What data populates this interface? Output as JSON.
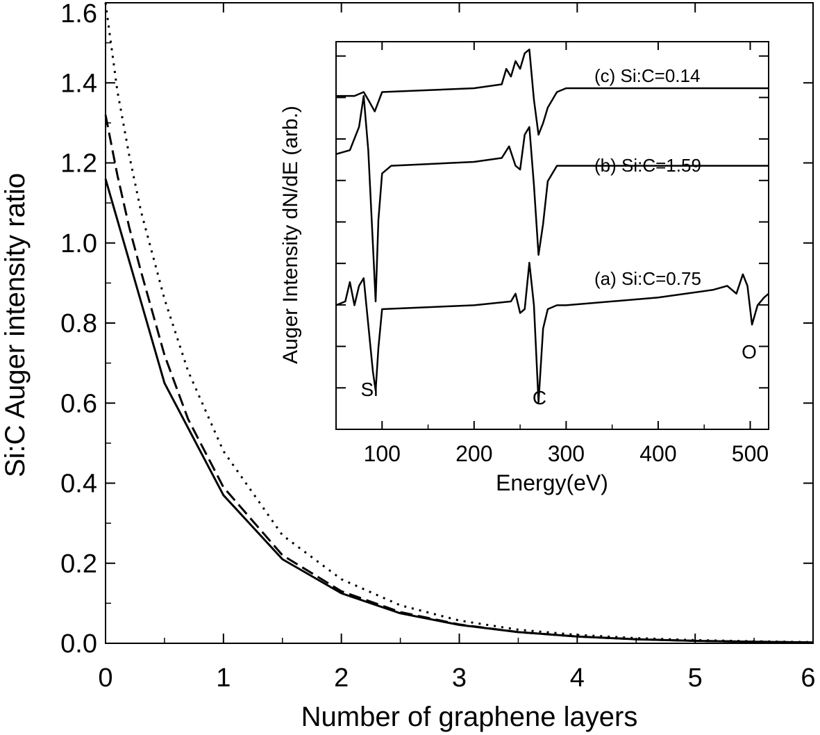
{
  "chart_data": [
    {
      "type": "line",
      "xlabel": "Number of graphene layers",
      "ylabel": "Si:C Auger intensity ratio",
      "xlim": [
        0,
        6
      ],
      "ylim": [
        0,
        1.6
      ],
      "xticks": [
        "0",
        "1",
        "2",
        "3",
        "4",
        "5",
        "6"
      ],
      "yticks": [
        "0.0",
        "0.2",
        "0.4",
        "0.6",
        "0.8",
        "1.0",
        "1.2",
        "1.4",
        "1.6"
      ],
      "legend": "none",
      "grid": false,
      "series": [
        {
          "style": "solid",
          "x": [
            0,
            0.5,
            1,
            1.5,
            2,
            2.5,
            3,
            3.5,
            4,
            4.5,
            5,
            5.5,
            6
          ],
          "y": [
            1.16,
            0.65,
            0.37,
            0.21,
            0.125,
            0.075,
            0.046,
            0.028,
            0.017,
            0.01,
            0.006,
            0.004,
            0.002
          ]
        },
        {
          "style": "dashed",
          "x": [
            0,
            0.1,
            0.2,
            0.3,
            0.5,
            0.7,
            1,
            1.5,
            2,
            2.5,
            3,
            3.5,
            4,
            4.5,
            5,
            5.5,
            6
          ],
          "y": [
            1.32,
            1.17,
            1.04,
            0.93,
            0.72,
            0.56,
            0.39,
            0.22,
            0.13,
            0.078,
            0.047,
            0.028,
            0.017,
            0.01,
            0.006,
            0.004,
            0.002
          ]
        },
        {
          "style": "dotted",
          "x": [
            0,
            0.1,
            0.2,
            0.3,
            0.5,
            0.7,
            1,
            1.5,
            2,
            2.5,
            3,
            3.5,
            4,
            4.5,
            5,
            5.5,
            6
          ],
          "y": [
            1.6,
            1.38,
            1.22,
            1.08,
            0.86,
            0.68,
            0.48,
            0.27,
            0.16,
            0.095,
            0.057,
            0.034,
            0.021,
            0.013,
            0.008,
            0.005,
            0.003
          ]
        }
      ]
    },
    {
      "type": "line",
      "xlabel": "Energy(eV)",
      "ylabel": "Auger Intensity dN/dE (arb.)",
      "xlim": [
        50,
        520
      ],
      "ylim": [
        0,
        10
      ],
      "xticks": [
        "100",
        "200",
        "300",
        "400",
        "500"
      ],
      "peak_labels": [
        "Si",
        "C",
        "O"
      ],
      "series": [
        {
          "name": "(c) Si:C=0.14",
          "x": [
            50,
            70,
            80,
            85,
            92,
            100,
            200,
            230,
            235,
            240,
            245,
            250,
            255,
            260,
            265,
            270,
            275,
            280,
            290,
            300,
            350,
            400,
            450,
            500,
            520
          ],
          "y": [
            8.6,
            8.6,
            8.7,
            8.5,
            8.2,
            8.7,
            8.8,
            8.9,
            9.3,
            9.1,
            9.5,
            9.3,
            9.7,
            9.8,
            8.5,
            7.6,
            7.9,
            8.3,
            8.7,
            8.8,
            8.8,
            8.8,
            8.8,
            8.8,
            8.8
          ]
        },
        {
          "name": "(b) Si:C=1.59",
          "x": [
            50,
            65,
            75,
            80,
            85,
            90,
            93,
            96,
            100,
            110,
            200,
            230,
            238,
            245,
            250,
            255,
            260,
            265,
            270,
            275,
            280,
            290,
            300,
            400,
            500,
            520
          ],
          "y": [
            7.1,
            7.2,
            7.8,
            8.6,
            7.2,
            4.8,
            3.3,
            5.4,
            6.6,
            6.8,
            6.9,
            7.0,
            7.3,
            6.8,
            6.7,
            7.6,
            7.8,
            6.3,
            4.5,
            5.3,
            6.4,
            6.8,
            6.8,
            6.8,
            6.8,
            6.8
          ]
        },
        {
          "name": "(a) Si:C=0.75",
          "x": [
            50,
            60,
            65,
            70,
            75,
            80,
            85,
            90,
            93,
            96,
            100,
            200,
            240,
            245,
            250,
            255,
            260,
            265,
            270,
            275,
            280,
            290,
            300,
            400,
            460,
            475,
            485,
            492,
            497,
            502,
            508,
            515,
            520
          ],
          "y": [
            3.2,
            3.3,
            3.8,
            3.2,
            3.7,
            3.9,
            2.7,
            1.5,
            1.0,
            2.1,
            3.1,
            3.2,
            3.3,
            3.5,
            3.0,
            3.1,
            4.3,
            3.2,
            0.7,
            2.6,
            3.1,
            3.2,
            3.2,
            3.4,
            3.6,
            3.7,
            3.5,
            4.0,
            3.7,
            2.7,
            3.2,
            3.4,
            3.5
          ]
        }
      ]
    }
  ]
}
